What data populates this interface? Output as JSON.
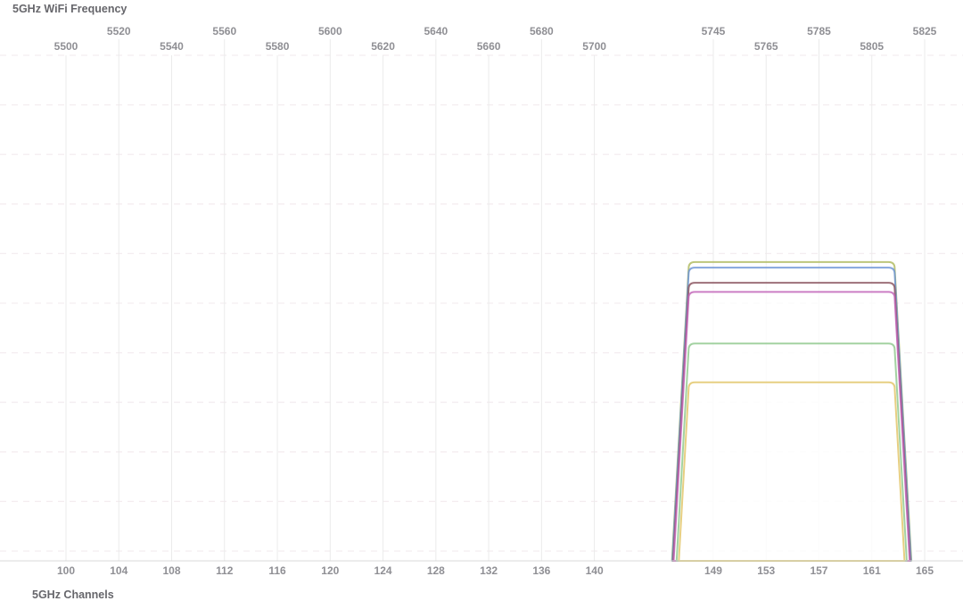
{
  "chart_data": {
    "type": "area",
    "title": "5GHz WiFi Frequency",
    "bottom_axis_label": "5GHz Channels",
    "top_axis": "frequency (MHz)",
    "bottom_axis": "channel number",
    "freq_range_mhz": [
      5500,
      5825
    ],
    "grid": {
      "vertical_lines": "solid, one per channel tick",
      "horizontal_lines": "dashed",
      "horizontal_line_count": 11
    },
    "ticks": [
      {
        "channel": "100",
        "freq": "5500",
        "freq_mhz": 5500,
        "row": "lower"
      },
      {
        "channel": "104",
        "freq": "5520",
        "freq_mhz": 5520,
        "row": "upper"
      },
      {
        "channel": "108",
        "freq": "5540",
        "freq_mhz": 5540,
        "row": "lower"
      },
      {
        "channel": "112",
        "freq": "5560",
        "freq_mhz": 5560,
        "row": "upper"
      },
      {
        "channel": "116",
        "freq": "5580",
        "freq_mhz": 5580,
        "row": "lower"
      },
      {
        "channel": "120",
        "freq": "5600",
        "freq_mhz": 5600,
        "row": "upper"
      },
      {
        "channel": "124",
        "freq": "5620",
        "freq_mhz": 5620,
        "row": "lower"
      },
      {
        "channel": "128",
        "freq": "5640",
        "freq_mhz": 5640,
        "row": "upper"
      },
      {
        "channel": "132",
        "freq": "5660",
        "freq_mhz": 5660,
        "row": "lower"
      },
      {
        "channel": "136",
        "freq": "5680",
        "freq_mhz": 5680,
        "row": "upper"
      },
      {
        "channel": "140",
        "freq": "5700",
        "freq_mhz": 5700,
        "row": "lower"
      },
      {
        "channel": "149",
        "freq": "5745",
        "freq_mhz": 5745,
        "row": "upper"
      },
      {
        "channel": "153",
        "freq": "5765",
        "freq_mhz": 5765,
        "row": "lower"
      },
      {
        "channel": "157",
        "freq": "5785",
        "freq_mhz": 5785,
        "row": "upper"
      },
      {
        "channel": "161",
        "freq": "5805",
        "freq_mhz": 5805,
        "row": "lower"
      },
      {
        "channel": "165",
        "freq": "5825",
        "freq_mhz": 5825,
        "row": "upper"
      }
    ],
    "networks": [
      {
        "id": "network-1",
        "color": "#aeba5e",
        "channel_start": 149,
        "channel_end": 161,
        "freq_low_mhz": 5735,
        "freq_high_mhz": 5815,
        "width_mhz": 80,
        "relative_strength": 0.591
      },
      {
        "id": "network-2",
        "color": "#6a93d6",
        "channel_start": 149,
        "channel_end": 161,
        "freq_low_mhz": 5735,
        "freq_high_mhz": 5815,
        "width_mhz": 80,
        "relative_strength": 0.58
      },
      {
        "id": "network-3",
        "color": "#87505c",
        "channel_start": 149,
        "channel_end": 161,
        "freq_low_mhz": 5735,
        "freq_high_mhz": 5815,
        "width_mhz": 80,
        "relative_strength": 0.55
      },
      {
        "id": "network-4",
        "color": "#c162b7",
        "channel_start": 149,
        "channel_end": 161,
        "freq_low_mhz": 5735,
        "freq_high_mhz": 5815,
        "width_mhz": 80,
        "relative_strength": 0.532
      },
      {
        "id": "network-5",
        "color": "#8fc88e",
        "channel_start": 149,
        "channel_end": 161,
        "freq_low_mhz": 5735,
        "freq_high_mhz": 5815,
        "width_mhz": 80,
        "relative_strength": 0.43
      },
      {
        "id": "network-6",
        "color": "#e2c566",
        "channel_start": 149,
        "channel_end": 161,
        "freq_low_mhz": 5735,
        "freq_high_mhz": 5815,
        "width_mhz": 80,
        "relative_strength": 0.353
      }
    ],
    "colors": {
      "background": "#ffffff",
      "vertical_grid": "#ebebeb",
      "horizontal_grid": "#f4edf0",
      "axis_line": "#d8d8d8",
      "tick_label": "#8f8f94",
      "axis_title": "#66666b",
      "network_fill_overlay": "rgba(255,255,255,0.3)"
    }
  }
}
